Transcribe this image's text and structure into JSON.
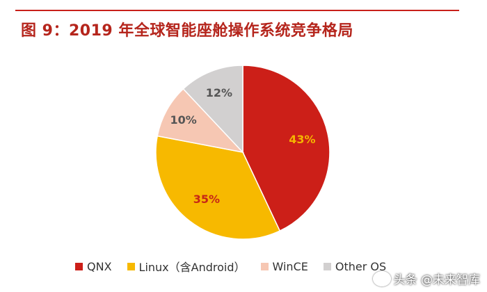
{
  "figure": {
    "title": "图 9：2019 年全球智能座舱操作系统竞争格局"
  },
  "chart_data": {
    "type": "pie",
    "title": "",
    "categories": [
      "QNX",
      "Linux（含Android）",
      "WinCE",
      "Other OS"
    ],
    "values": [
      43,
      35,
      10,
      12
    ],
    "labels": [
      "43%",
      "35%",
      "10%",
      "12%"
    ],
    "colors": [
      "#cc1f18",
      "#f7b900",
      "#f6c7b3",
      "#d2d0d0"
    ],
    "label_colors": [
      "#f5b400",
      "#c62616",
      "#555555",
      "#555555"
    ],
    "legend": "bottom"
  },
  "watermark": {
    "text": "头条 @未来智库"
  }
}
